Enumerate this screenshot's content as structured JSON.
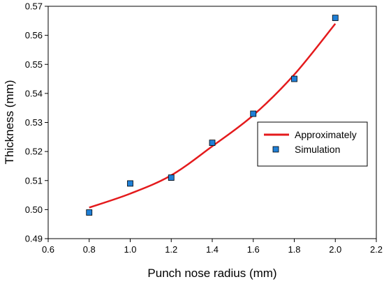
{
  "chart_data": {
    "type": "scatter",
    "xlabel": "Punch nose radius (mm)",
    "ylabel": "Thickness (mm)",
    "xlim": [
      0.6,
      2.2
    ],
    "ylim": [
      0.49,
      0.57
    ],
    "x_ticks": [
      "0.6",
      "0.8",
      "1.0",
      "1.2",
      "1.4",
      "1.6",
      "1.8",
      "2.0",
      "2.2"
    ],
    "y_ticks": [
      "0.49",
      "0.50",
      "0.51",
      "0.52",
      "0.53",
      "0.54",
      "0.55",
      "0.56",
      "0.57"
    ],
    "grid": false,
    "legend_position": "right",
    "series": [
      {
        "name": "Approximately",
        "kind": "line",
        "color": "#e41a1c",
        "x": [
          0.8,
          1.0,
          1.2,
          1.4,
          1.6,
          1.8,
          2.0
        ],
        "y": [
          0.5007,
          0.5055,
          0.5118,
          0.5218,
          0.5325,
          0.5465,
          0.564
        ]
      },
      {
        "name": "Simulation",
        "kind": "scatter",
        "color": "#1f7fd6",
        "x": [
          0.8,
          1.0,
          1.2,
          1.4,
          1.6,
          1.8,
          2.0
        ],
        "y": [
          0.499,
          0.509,
          0.511,
          0.523,
          0.533,
          0.545,
          0.566
        ]
      }
    ]
  }
}
